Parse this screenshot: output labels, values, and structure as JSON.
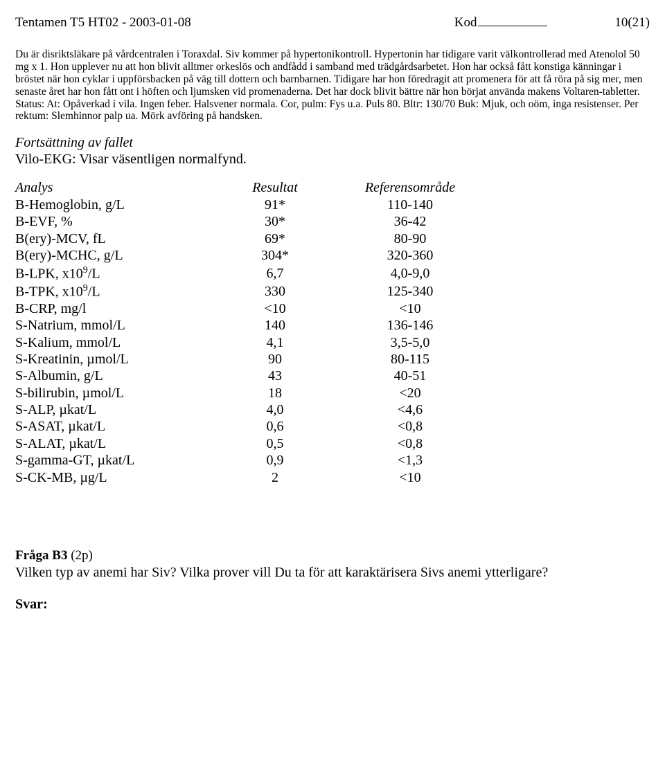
{
  "header": {
    "left": "Tentamen T5 HT02 - 2003-01-08",
    "kod_label": "Kod",
    "right": "10(21)"
  },
  "case_text": "Du är disriktsläkare på vårdcentralen i Toraxdal. Siv kommer på hypertonikontroll. Hypertonin har tidigare varit välkontrollerad med Atenolol 50 mg x 1. Hon upplever nu att hon blivit alltmer orkeslös och andfådd i samband med trädgårdsarbetet. Hon har också fått konstiga känningar i bröstet när hon cyklar i uppförsbacken på väg till dottern och barnbarnen. Tidigare har hon föredragit att promenera för att få röra på sig mer, men senaste året har hon fått ont i höften och ljumsken vid promenaderna. Det har dock blivit bättre när hon börjat använda makens Voltaren-tabletter. Status: At: Opåverkad i vila. Ingen feber. Halsvener normala. Cor, pulm: Fys u.a. Puls 80. Bltr: 130/70 Buk: Mjuk, och oöm, inga resistenser. Per rektum: Slemhinnor palp ua. Mörk avföring på handsken.",
  "continuation": {
    "title": "Fortsättning av fallet",
    "sub": "Vilo-EKG: Visar väsentligen normalfynd."
  },
  "lab": {
    "headers": {
      "analys": "Analys",
      "resultat": "Resultat",
      "ref": "Referensområde"
    },
    "rows": [
      {
        "a": "B-Hemoglobin, g/L",
        "r": "91*",
        "ref": "110-140"
      },
      {
        "a": "B-EVF, %",
        "r": "30*",
        "ref": "36-42"
      },
      {
        "a": "B(ery)-MCV, fL",
        "r": "69*",
        "ref": "80-90"
      },
      {
        "a": "B(ery)-MCHC, g/L",
        "r": "304*",
        "ref": "320-360"
      },
      {
        "a": "B-LPK, x10⁹/L",
        "r": "6,7",
        "ref": "4,0-9,0",
        "sup9": true
      },
      {
        "a": "B-TPK, x10⁹/L",
        "r": "330",
        "ref": "125-340",
        "sup9": true
      },
      {
        "a": "B-CRP, mg/l",
        "r": "<10",
        "ref": "<10"
      },
      {
        "a": "S-Natrium, mmol/L",
        "r": "140",
        "ref": "136-146"
      },
      {
        "a": "S-Kalium, mmol/L",
        "r": "4,1",
        "ref": "3,5-5,0"
      },
      {
        "a": "S-Kreatinin, µmol/L",
        "r": "90",
        "ref": "80-115"
      },
      {
        "a": "S-Albumin, g/L",
        "r": "43",
        "ref": "40-51"
      },
      {
        "a": "S-bilirubin, µmol/L",
        "r": "18",
        "ref": "<20"
      },
      {
        "a": "S-ALP, µkat/L",
        "r": "4,0",
        "ref": "<4,6"
      },
      {
        "a": "S-ASAT, µkat/L",
        "r": "0,6",
        "ref": "<0,8"
      },
      {
        "a": "S-ALAT, µkat/L",
        "r": "0,5",
        "ref": "<0,8"
      },
      {
        "a": "S-gamma-GT, µkat/L",
        "r": "0,9",
        "ref": "<1,3"
      },
      {
        "a": "S-CK-MB, µg/L",
        "r": "2",
        "ref": "<10"
      }
    ]
  },
  "question": {
    "label": "Fråga B3",
    "points": "(2p)",
    "text": "Vilken typ av anemi har Siv? Vilka prover vill Du ta för att karaktärisera Sivs anemi ytterligare?"
  },
  "svar_label": "Svar:"
}
